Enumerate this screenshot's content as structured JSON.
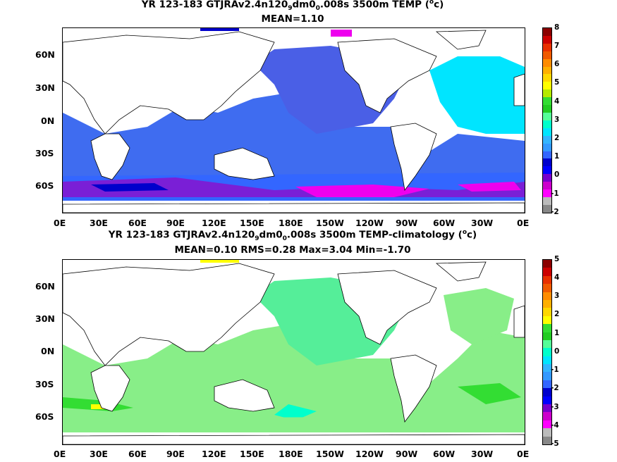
{
  "panel1": {
    "title_main": "YR 123-183 GTJRAv2.4n120",
    "title_sub1": "9",
    "title_mid": "dm0",
    "title_sub2": "0",
    "title_end": ".008s 3500m TEMP (",
    "title_sup": "o",
    "title_unit": "c)",
    "stats": "MEAN=1.10",
    "colorbar_labels": [
      "8",
      "7",
      "6",
      "5",
      "4",
      "3",
      "2",
      "1",
      "0",
      "-1",
      "-2"
    ],
    "colorbar_colors": [
      "#8b0000",
      "#cc0000",
      "#e83000",
      "#f05a00",
      "#ff8c00",
      "#ffb000",
      "#ffd800",
      "#ffff00",
      "#b5ea00",
      "#33dd33",
      "#22cc22",
      "#55ff99",
      "#00ffcc",
      "#00e5ff",
      "#33b5ff",
      "#3399ff",
      "#3366ff",
      "#0000cc",
      "#0000ff",
      "#7700cc",
      "#cc00cc",
      "#ff00ff",
      "#bbbbbb",
      "#888888"
    ]
  },
  "panel2": {
    "title_main": "YR 123-183 GTJRAv2.4n120",
    "title_sub1": "9",
    "title_mid": "dm0",
    "title_sub2": "0",
    "title_end": ".008s 3500m TEMP-climatology (",
    "title_sup": "o",
    "title_unit": "c)",
    "stats": "MEAN=0.10   RMS=0.28   Max=3.04   Min=-1.70",
    "colorbar_labels": [
      "5",
      "4",
      "3",
      "2",
      "1",
      "0",
      "-1",
      "-2",
      "-3",
      "-4",
      "-5"
    ],
    "colorbar_colors": [
      "#8b0000",
      "#cc0000",
      "#e83000",
      "#f05a00",
      "#ff8c00",
      "#ffb000",
      "#ffd800",
      "#ffff00",
      "#33dd33",
      "#22cc22",
      "#55ff99",
      "#00ffcc",
      "#00e5ff",
      "#33b5ff",
      "#3399ff",
      "#3366ff",
      "#0000cc",
      "#0000ff",
      "#7700cc",
      "#cc00cc",
      "#ff00ff",
      "#bbbbbb",
      "#888888"
    ]
  },
  "lat_labels": [
    "60N",
    "30N",
    "0N",
    "30S",
    "60S"
  ],
  "lon_labels": [
    "0E",
    "30E",
    "60E",
    "90E",
    "120E",
    "150E",
    "180E",
    "150W",
    "120W",
    "90W",
    "60W",
    "30W",
    "0E"
  ],
  "colors": {
    "p1_main": "#3f6cf0",
    "p1_north_pac": "#4a5fe6",
    "p1_atlantic": "#00e5ff",
    "p1_southern": "#7a1fd6",
    "p1_magenta": "#ee00ee",
    "p1_navy": "#0000cc",
    "p2_main": "#88ee88",
    "p2_pacific": "#55ee99",
    "p2_green": "#33dd33",
    "p2_cyan": "#00ffcc",
    "p2_yellow": "#ffff00"
  }
}
